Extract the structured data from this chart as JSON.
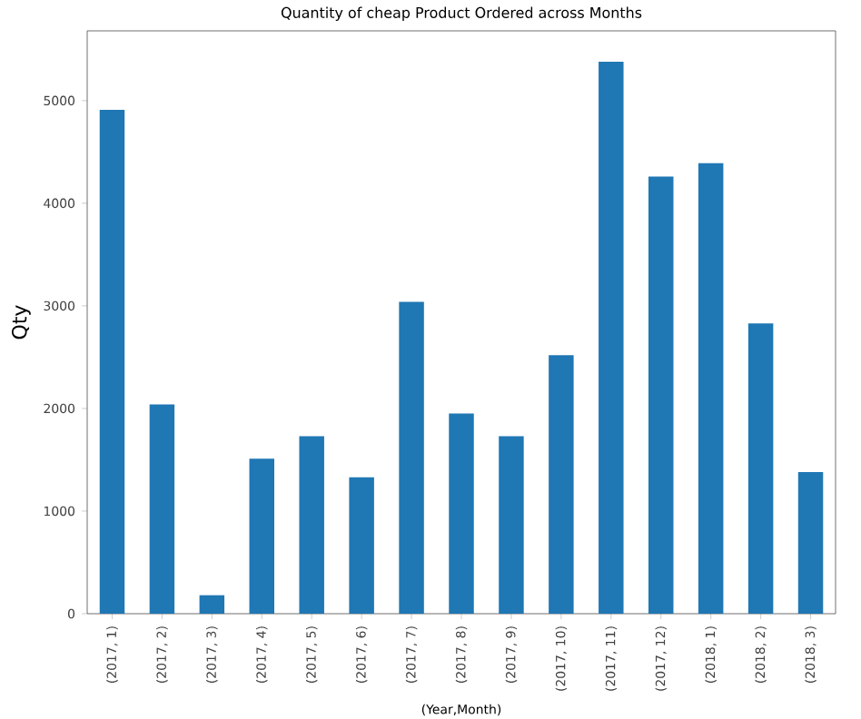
{
  "chart_data": {
    "type": "bar",
    "title": "Quantity of cheap Product Ordered across Months",
    "xlabel": "(Year,Month)",
    "ylabel": "Qty",
    "categories": [
      "(2017, 1)",
      "(2017, 2)",
      "(2017, 3)",
      "(2017, 4)",
      "(2017, 5)",
      "(2017, 6)",
      "(2017, 7)",
      "(2017, 8)",
      "(2017, 9)",
      "(2017, 10)",
      "(2017, 11)",
      "(2017, 12)",
      "(2018, 1)",
      "(2018, 2)",
      "(2018, 3)"
    ],
    "values": [
      4910,
      2040,
      180,
      1510,
      1730,
      1330,
      3040,
      1950,
      1730,
      2520,
      5380,
      4260,
      4390,
      2830,
      1380
    ],
    "color": "#1f77b4",
    "ylim": [
      0,
      5680
    ],
    "yticks": [
      0,
      1000,
      2000,
      3000,
      4000,
      5000
    ]
  }
}
